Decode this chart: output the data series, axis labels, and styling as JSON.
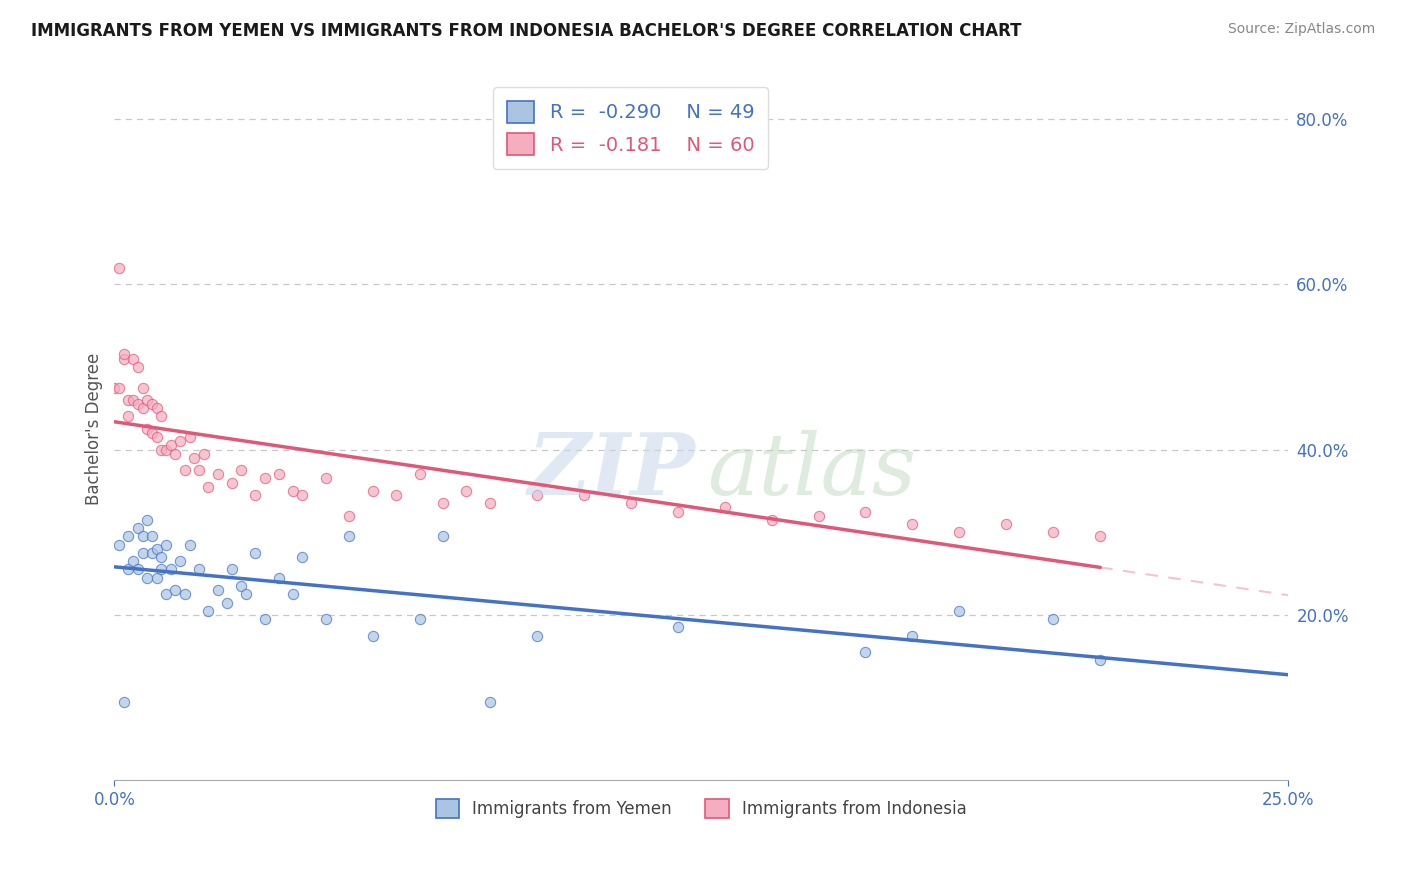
{
  "title": "IMMIGRANTS FROM YEMEN VS IMMIGRANTS FROM INDONESIA BACHELOR'S DEGREE CORRELATION CHART",
  "source": "Source: ZipAtlas.com",
  "ylabel": "Bachelor's Degree",
  "xlim": [
    0.0,
    0.25
  ],
  "ylim": [
    0.0,
    0.85
  ],
  "xtick_labels": [
    "0.0%",
    "25.0%"
  ],
  "ytick_labels": [
    "20.0%",
    "40.0%",
    "60.0%",
    "80.0%"
  ],
  "ytick_values": [
    0.2,
    0.4,
    0.6,
    0.8
  ],
  "xtick_values": [
    0.0,
    0.25
  ],
  "legend_R1": "-0.290",
  "legend_N1": "49",
  "legend_R2": "-0.181",
  "legend_N2": "60",
  "yemen_color": "#aac4e2",
  "indonesia_color": "#f5adc0",
  "yemen_line_color": "#4472C4",
  "indonesia_line_color": "#E05878",
  "scatter_alpha": 0.7,
  "scatter_size": 55,
  "background_color": "#ffffff",
  "grid_color": "#c8c8c8",
  "yemen_x": [
    0.001,
    0.002,
    0.003,
    0.003,
    0.004,
    0.005,
    0.005,
    0.006,
    0.006,
    0.007,
    0.007,
    0.008,
    0.008,
    0.009,
    0.009,
    0.01,
    0.01,
    0.011,
    0.011,
    0.012,
    0.013,
    0.014,
    0.015,
    0.016,
    0.018,
    0.02,
    0.022,
    0.024,
    0.025,
    0.027,
    0.028,
    0.03,
    0.032,
    0.035,
    0.038,
    0.04,
    0.045,
    0.05,
    0.055,
    0.065,
    0.07,
    0.08,
    0.09,
    0.12,
    0.16,
    0.17,
    0.18,
    0.2,
    0.21
  ],
  "yemen_y": [
    0.285,
    0.095,
    0.255,
    0.295,
    0.265,
    0.255,
    0.305,
    0.275,
    0.295,
    0.315,
    0.245,
    0.295,
    0.275,
    0.28,
    0.245,
    0.27,
    0.255,
    0.225,
    0.285,
    0.255,
    0.23,
    0.265,
    0.225,
    0.285,
    0.255,
    0.205,
    0.23,
    0.215,
    0.255,
    0.235,
    0.225,
    0.275,
    0.195,
    0.245,
    0.225,
    0.27,
    0.195,
    0.295,
    0.175,
    0.195,
    0.295,
    0.095,
    0.175,
    0.185,
    0.155,
    0.175,
    0.205,
    0.195,
    0.145
  ],
  "indonesia_x": [
    0.0,
    0.001,
    0.001,
    0.002,
    0.002,
    0.003,
    0.003,
    0.004,
    0.004,
    0.005,
    0.005,
    0.006,
    0.006,
    0.007,
    0.007,
    0.008,
    0.008,
    0.009,
    0.009,
    0.01,
    0.01,
    0.011,
    0.012,
    0.013,
    0.014,
    0.015,
    0.016,
    0.017,
    0.018,
    0.019,
    0.02,
    0.022,
    0.025,
    0.027,
    0.03,
    0.032,
    0.035,
    0.038,
    0.04,
    0.045,
    0.05,
    0.055,
    0.06,
    0.065,
    0.07,
    0.075,
    0.08,
    0.09,
    0.1,
    0.11,
    0.12,
    0.13,
    0.14,
    0.15,
    0.16,
    0.17,
    0.18,
    0.19,
    0.2,
    0.21
  ],
  "indonesia_y": [
    0.475,
    0.475,
    0.62,
    0.51,
    0.515,
    0.46,
    0.44,
    0.46,
    0.51,
    0.455,
    0.5,
    0.45,
    0.475,
    0.425,
    0.46,
    0.42,
    0.455,
    0.415,
    0.45,
    0.4,
    0.44,
    0.4,
    0.405,
    0.395,
    0.41,
    0.375,
    0.415,
    0.39,
    0.375,
    0.395,
    0.355,
    0.37,
    0.36,
    0.375,
    0.345,
    0.365,
    0.37,
    0.35,
    0.345,
    0.365,
    0.32,
    0.35,
    0.345,
    0.37,
    0.335,
    0.35,
    0.335,
    0.345,
    0.345,
    0.335,
    0.325,
    0.33,
    0.315,
    0.32,
    0.325,
    0.31,
    0.3,
    0.31,
    0.3,
    0.295
  ]
}
